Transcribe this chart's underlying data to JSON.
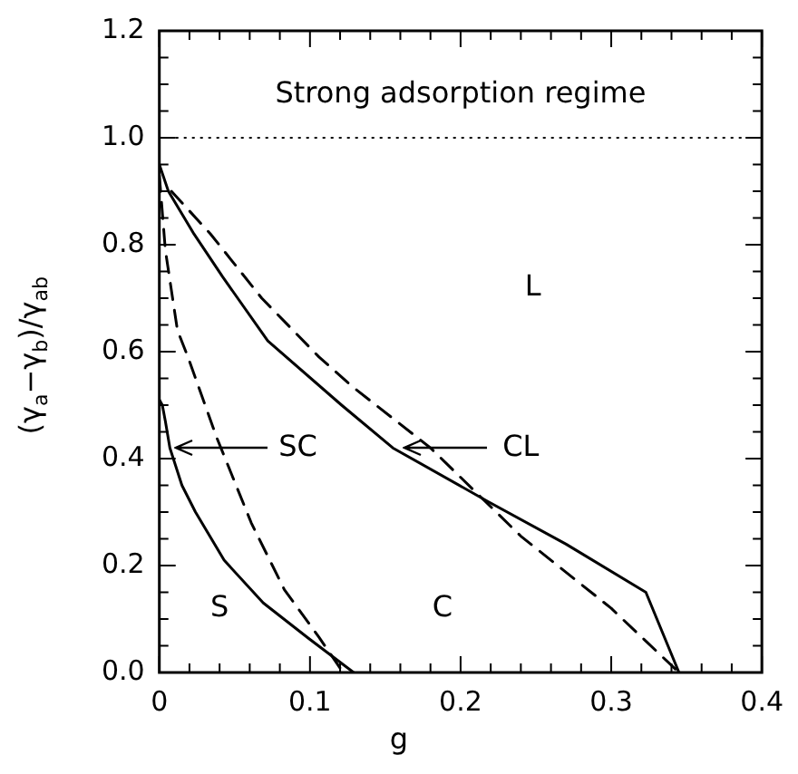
{
  "chart_data": {
    "type": "line",
    "xlabel": "g",
    "ylabel": "(γ$_{a}$−γ$_{b}$)/γ$_{ab}$",
    "xlim": [
      0,
      0.4
    ],
    "ylim": [
      0,
      1.2
    ],
    "xticks": [
      0,
      {
        "value": 0.02,
        "label": null
      },
      {
        "value": 0.04,
        "label": null
      },
      {
        "value": 0.06,
        "label": null
      },
      {
        "value": 0.08,
        "label": null
      },
      0.1,
      {
        "value": 0.12,
        "label": null
      },
      {
        "value": 0.14,
        "label": null
      },
      {
        "value": 0.16,
        "label": null
      },
      {
        "value": 0.18,
        "label": null
      },
      0.2,
      {
        "value": 0.22,
        "label": null
      },
      {
        "value": 0.24,
        "label": null
      },
      {
        "value": 0.26,
        "label": null
      },
      {
        "value": 0.28,
        "label": null
      },
      0.3,
      {
        "value": 0.32,
        "label": null
      },
      {
        "value": 0.34,
        "label": null
      },
      {
        "value": 0.36,
        "label": null
      },
      {
        "value": 0.38,
        "label": null
      },
      0.4
    ],
    "yticks": [
      {
        "value": 0,
        "label": "0.0"
      },
      {
        "value": 0.05,
        "label": null
      },
      {
        "value": 0.1,
        "label": null
      },
      {
        "value": 0.15,
        "label": null
      },
      0.2,
      {
        "value": 0.25,
        "label": null
      },
      {
        "value": 0.3,
        "label": null
      },
      {
        "value": 0.35,
        "label": null
      },
      0.4,
      {
        "value": 0.45,
        "label": null
      },
      {
        "value": 0.5,
        "label": null
      },
      {
        "value": 0.55,
        "label": null
      },
      0.6,
      {
        "value": 0.65,
        "label": null
      },
      {
        "value": 0.7,
        "label": null
      },
      {
        "value": 0.75,
        "label": null
      },
      0.8,
      {
        "value": 0.85,
        "label": null
      },
      {
        "value": 0.9,
        "label": null
      },
      {
        "value": 0.95,
        "label": null
      },
      {
        "value": 1,
        "label": "1.0"
      },
      {
        "value": 1.05,
        "label": null
      },
      {
        "value": 1.1,
        "label": null
      },
      {
        "value": 1.15,
        "label": null
      },
      1.2
    ],
    "grid": false,
    "legend": false,
    "marker": "none",
    "series": [
      {
        "color": "#000000",
        "line_style": "solid",
        "x": [
          0,
          0.002,
          0.004,
          0.007,
          0.015,
          0.024,
          0.043,
          0.069,
          0.099,
          0.129
        ],
        "values": [
          0.51,
          0.5,
          0.47,
          0.42,
          0.35,
          0.3,
          0.21,
          0.13,
          0.064,
          0
        ]
      },
      {
        "color": "#000000",
        "line_style": "dashed",
        "x": [
          0,
          0.004,
          0.012,
          0.019,
          0.038,
          0.061,
          0.083,
          0.106,
          0.122
        ],
        "values": [
          0.93,
          0.79,
          0.64,
          0.59,
          0.44,
          0.28,
          0.155,
          0.066,
          0
        ]
      },
      {
        "color": "#000000",
        "line_style": "solid",
        "x": [
          0,
          0.006,
          0.023,
          0.042,
          0.072,
          0.121,
          0.155,
          0.218,
          0.27,
          0.323,
          0.345
        ],
        "values": [
          0.95,
          0.9,
          0.82,
          0.74,
          0.62,
          0.5,
          0.42,
          0.32,
          0.24,
          0.15,
          0
        ]
      },
      {
        "color": "#000000",
        "line_style": "dashed",
        "x": [
          0.008,
          0.034,
          0.068,
          0.106,
          0.128,
          0.18,
          0.24,
          0.3,
          0.345
        ],
        "values": [
          0.9,
          0.82,
          0.7,
          0.59,
          0.535,
          0.42,
          0.255,
          0.12,
          0
        ]
      }
    ],
    "ref_lines": [
      {
        "axis": "y",
        "value": 1.0,
        "line_style": "dotted",
        "color": "#000000"
      }
    ],
    "annotations": [
      "Strong adsorption regime",
      "S",
      "C",
      "L",
      "SC",
      "CL"
    ]
  }
}
